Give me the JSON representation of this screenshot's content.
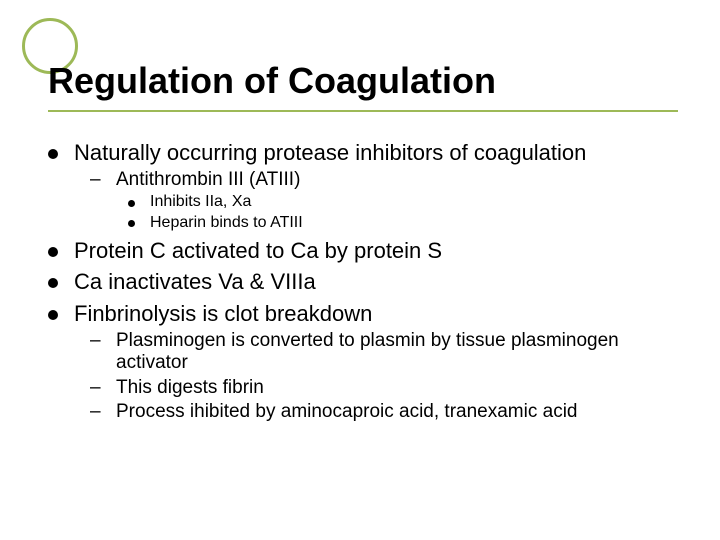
{
  "title": "Regulation of Coagulation",
  "accent_color": "#9db957",
  "text_color": "#000000",
  "background_color": "#ffffff",
  "fonts": {
    "family": "Arial",
    "title_size": 36,
    "l1_size": 22,
    "l2_size": 19,
    "l3_size": 16
  },
  "bullets": {
    "b1": "Naturally occurring protease inhibitors of coagulation",
    "b1_1": "Antithrombin III (ATIII)",
    "b1_1_1": "Inhibits IIa, Xa",
    "b1_1_2": "Heparin binds to ATIII",
    "b2": "Protein C activated to Ca by protein S",
    "b3": "Ca inactivates Va & VIIIa",
    "b4": "Finbrinolysis is clot breakdown",
    "b4_1": "Plasminogen is converted to plasmin by tissue plasminogen activator",
    "b4_2": "This digests fibrin",
    "b4_3": "Process ihibited by aminocaproic acid, tranexamic acid"
  }
}
